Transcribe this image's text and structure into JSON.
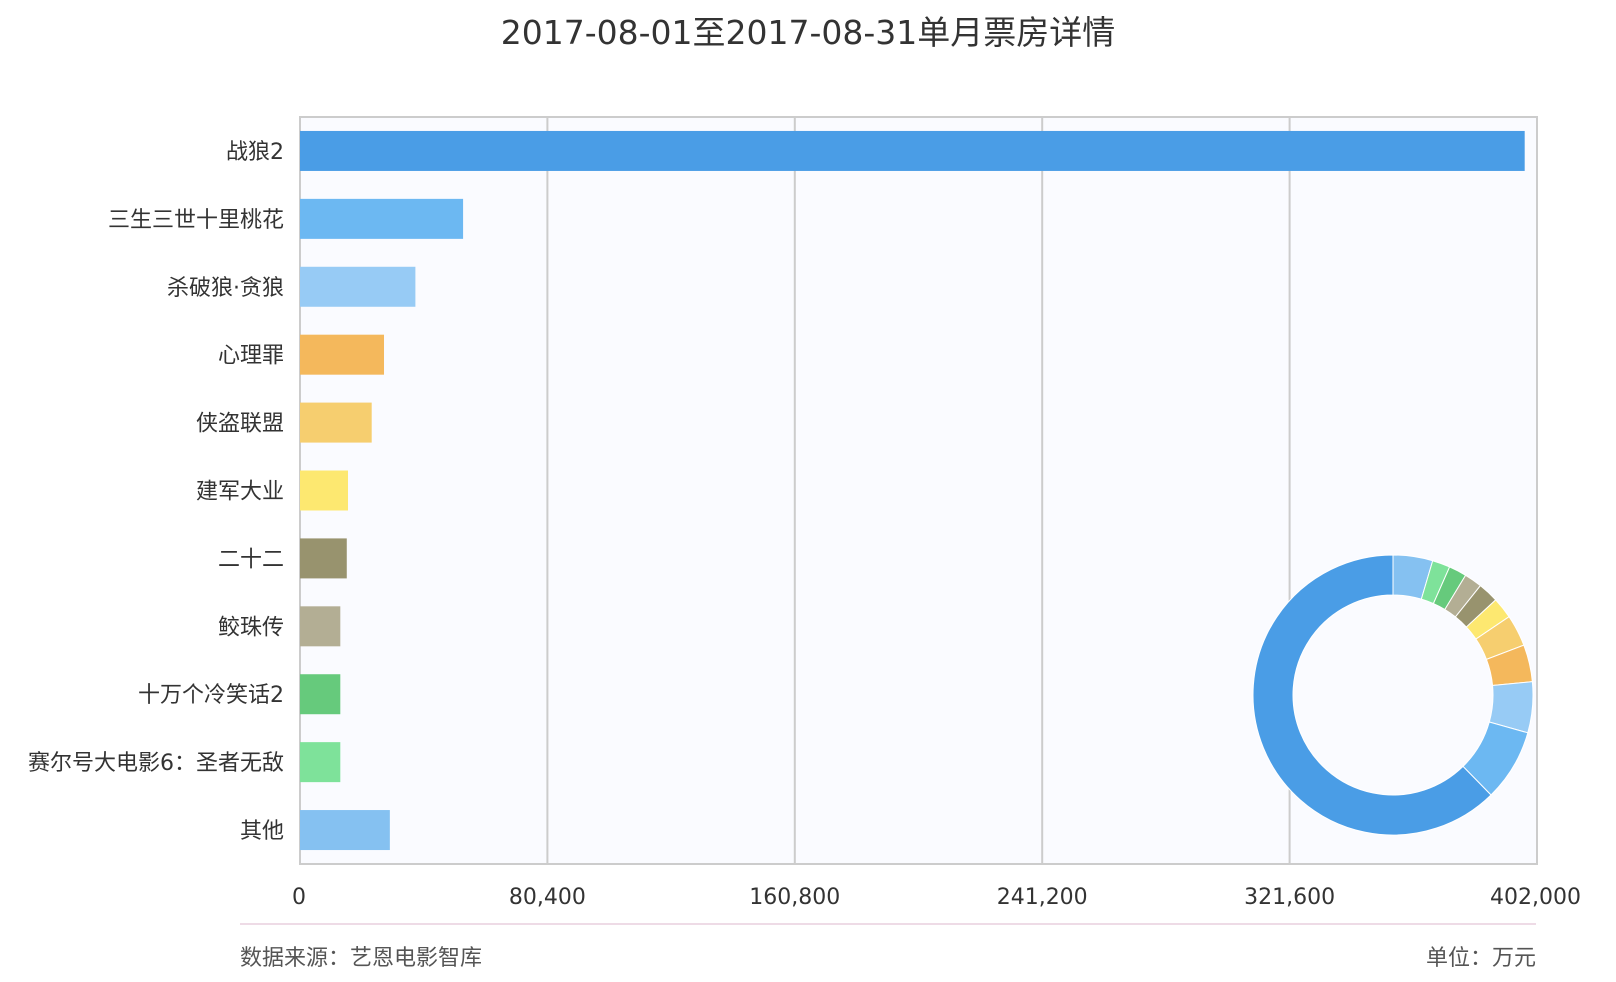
{
  "chart_data": {
    "type": "bar",
    "orientation": "horizontal",
    "title": "2017-08-01至2017-08-31单月票房详情",
    "categories": [
      "战狼2",
      "三生三世十里桃花",
      "杀破狼·贪狼",
      "心理罪",
      "侠盗联盟",
      "建军大业",
      "二十二",
      "鲛珠传",
      "十万个冷笑话2",
      "赛尔号大电影6：圣者无敌",
      "其他"
    ],
    "values": [
      398000,
      53000,
      37500,
      27300,
      23300,
      15600,
      15200,
      13100,
      13100,
      13100,
      29200
    ],
    "colors": [
      "#4a9de6",
      "#6cb8f2",
      "#97cbf5",
      "#f4b85c",
      "#f6ce6f",
      "#fde870",
      "#98936e",
      "#b3ae94",
      "#66ca7c",
      "#7ee29a",
      "#85c1f1"
    ],
    "xlim": [
      0,
      402000
    ],
    "xticks": [
      "0",
      "80,400",
      "160,800",
      "241,200",
      "321,600",
      "402,000"
    ],
    "grid": true,
    "inset": {
      "type": "donut",
      "slices": [
        {
          "label": "战狼2",
          "value": 398000,
          "color": "#4a9de6"
        },
        {
          "label": "三生三世十里桃花",
          "value": 53000,
          "color": "#6cb8f2"
        },
        {
          "label": "杀破狼·贪狼",
          "value": 37500,
          "color": "#97cbf5"
        },
        {
          "label": "心理罪",
          "value": 27300,
          "color": "#f4b85c"
        },
        {
          "label": "侠盗联盟",
          "value": 23300,
          "color": "#f6ce6f"
        },
        {
          "label": "建军大业",
          "value": 15600,
          "color": "#fde870"
        },
        {
          "label": "二十二",
          "value": 15200,
          "color": "#98936e"
        },
        {
          "label": "鲛珠传",
          "value": 13100,
          "color": "#b3ae94"
        },
        {
          "label": "十万个冷笑话2",
          "value": 13100,
          "color": "#66ca7c"
        },
        {
          "label": "赛尔号大电影6：圣者无敌",
          "value": 13100,
          "color": "#7ee29a"
        },
        {
          "label": "其他",
          "value": 29200,
          "color": "#85c1f1"
        }
      ]
    }
  },
  "footer": {
    "source": "数据来源：艺恩电影智库",
    "unit": "单位：万元"
  }
}
